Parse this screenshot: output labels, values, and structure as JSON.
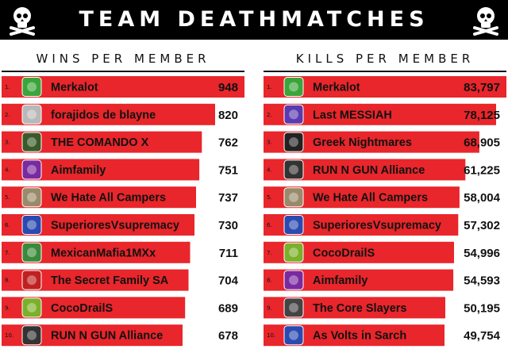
{
  "header": {
    "title": "TEAM DEATHMATCHES"
  },
  "colors": {
    "bar": "#e8262b",
    "header_bg": "#000000",
    "text": "#111111"
  },
  "icons": {
    "header_left": "skull-crossbones-icon",
    "header_right": "skull-crossbones-icon"
  },
  "chart_data": [
    {
      "type": "bar",
      "orientation": "horizontal",
      "title": "WINS PER MEMBER",
      "ranks": [
        "1.",
        "2.",
        "3.",
        "4.",
        "5.",
        "6.",
        "7.",
        "8.",
        "9.",
        "10."
      ],
      "categories": [
        "Merkalot",
        "forajidos de blayne",
        "THE COMANDO X",
        "Aimfamily",
        "We Hate All Campers",
        "SuperioresVsupremacy",
        "MexicanMafia1MXx",
        "The Secret Family SA",
        "CocoDrailS",
        "RUN N GUN Alliance"
      ],
      "values": [
        948,
        820,
        762,
        751,
        737,
        730,
        711,
        704,
        689,
        678
      ],
      "value_labels": [
        "948",
        "820",
        "762",
        "751",
        "737",
        "730",
        "711",
        "704",
        "689",
        "678"
      ],
      "icons": [
        "merk-logo-icon",
        "emblem-icon",
        "soldier-emblem-icon",
        "purple-emblem-icon",
        "shield-emblem-icon",
        "blue-eagle-emblem-icon",
        "mexico-flag-emblem-icon",
        "red-black-emblem-icon",
        "crocodile-emblem-icon",
        "gorilla-emblem-icon"
      ],
      "icon_colors": [
        "#3aa53a",
        "#b8b8b8",
        "#3a5a2a",
        "#7a2aa0",
        "#9a8a6a",
        "#2a4ab0",
        "#3a8a3a",
        "#c02020",
        "#7ab02a",
        "#333333"
      ],
      "xlim": [
        0,
        948
      ],
      "grid": false,
      "legend": "none"
    },
    {
      "type": "bar",
      "orientation": "horizontal",
      "title": "KILLS PER MEMBER",
      "ranks": [
        "1.",
        "2.",
        "3.",
        "4.",
        "5.",
        "6.",
        "7.",
        "8.",
        "9.",
        "10."
      ],
      "categories": [
        "Merkalot",
        "Last MESSIAH",
        "Greek Nightmares",
        "RUN N GUN Alliance",
        "We Hate All Campers",
        "SuperioresVsupremacy",
        "CocoDrailS",
        "Aimfamily",
        "The Core Slayers",
        "As Volts in Sarch"
      ],
      "values": [
        83797,
        78125,
        68905,
        61225,
        58004,
        57302,
        54996,
        54593,
        50195,
        49754
      ],
      "value_labels": [
        "83,797",
        "78,125",
        "68,905",
        "61,225",
        "58,004",
        "57,302",
        "54,996",
        "54,593",
        "50,195",
        "49,754"
      ],
      "icons": [
        "merk-logo-icon",
        "winged-emblem-icon",
        "skull-emblem-icon",
        "gorilla-emblem-icon",
        "shield-emblem-icon",
        "blue-eagle-emblem-icon",
        "crocodile-emblem-icon",
        "purple-emblem-icon",
        "skull-emblem-icon",
        "blue-skull-emblem-icon"
      ],
      "icon_colors": [
        "#3aa53a",
        "#5a3ab0",
        "#222222",
        "#333333",
        "#9a8a6a",
        "#2a4ab0",
        "#7ab02a",
        "#7a2aa0",
        "#444444",
        "#2a4ab0"
      ],
      "xlim": [
        0,
        83797
      ],
      "grid": false,
      "legend": "none"
    }
  ]
}
